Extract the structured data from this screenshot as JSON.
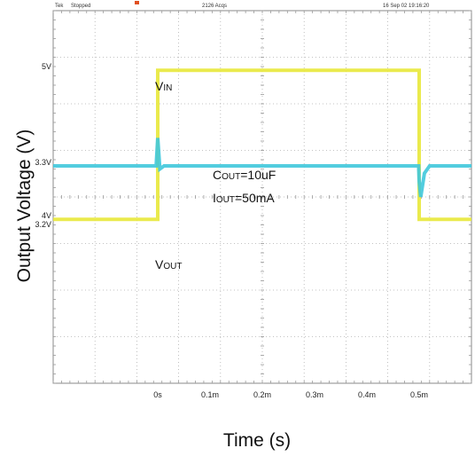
{
  "status_bar": {
    "left_1": "Tek",
    "left_2": "Stopped",
    "center": "2126 Acqs",
    "right": "16 Sep 02 19:16:20"
  },
  "annotations": {
    "vin": {
      "main": "V",
      "sub": "IN"
    },
    "vout": {
      "main": "V",
      "sub": "OUT"
    },
    "cout": {
      "main": "C",
      "sub": "OUT",
      "rest": "=10uF"
    },
    "iout": {
      "main": "I",
      "sub": "OUT",
      "rest": "=50mA"
    }
  },
  "chart_data": {
    "type": "line",
    "xlabel": "Time (s)",
    "ylabel": "Output Voltage (V)",
    "x_ticks": [
      "0s",
      "0.1m",
      "0.2m",
      "0.3m",
      "0.4m",
      "0.5m"
    ],
    "x_tick_values": [
      0,
      0.1,
      0.2,
      0.3,
      0.4,
      0.5
    ],
    "xlim": [
      -0.2,
      0.6
    ],
    "grid": true,
    "vin_axis": {
      "ticks": [
        "5V",
        "4V"
      ],
      "tick_values": [
        5,
        4
      ],
      "ylim": [
        2.9,
        5.4
      ]
    },
    "vout_axis": {
      "ticks": [
        "3.3V",
        "3.2V"
      ],
      "tick_values": [
        3.3,
        3.2
      ],
      "ylim": [
        2.95,
        3.55
      ]
    },
    "series": [
      {
        "name": "VIN",
        "color": "#e8e83a",
        "axis": "vin",
        "x": [
          -0.2,
          0.0,
          0.0,
          0.5,
          0.5,
          0.6
        ],
        "y": [
          4.0,
          4.0,
          5.0,
          5.0,
          4.0,
          4.0
        ]
      },
      {
        "name": "VOUT",
        "color": "#3fc8dc",
        "axis": "vout",
        "x": [
          -0.2,
          -0.003,
          0.0,
          0.004,
          0.012,
          0.499,
          0.5,
          0.503,
          0.51,
          0.52,
          0.6
        ],
        "y": [
          3.3,
          3.3,
          3.345,
          3.295,
          3.3,
          3.3,
          3.275,
          3.25,
          3.288,
          3.3,
          3.3
        ]
      }
    ]
  }
}
